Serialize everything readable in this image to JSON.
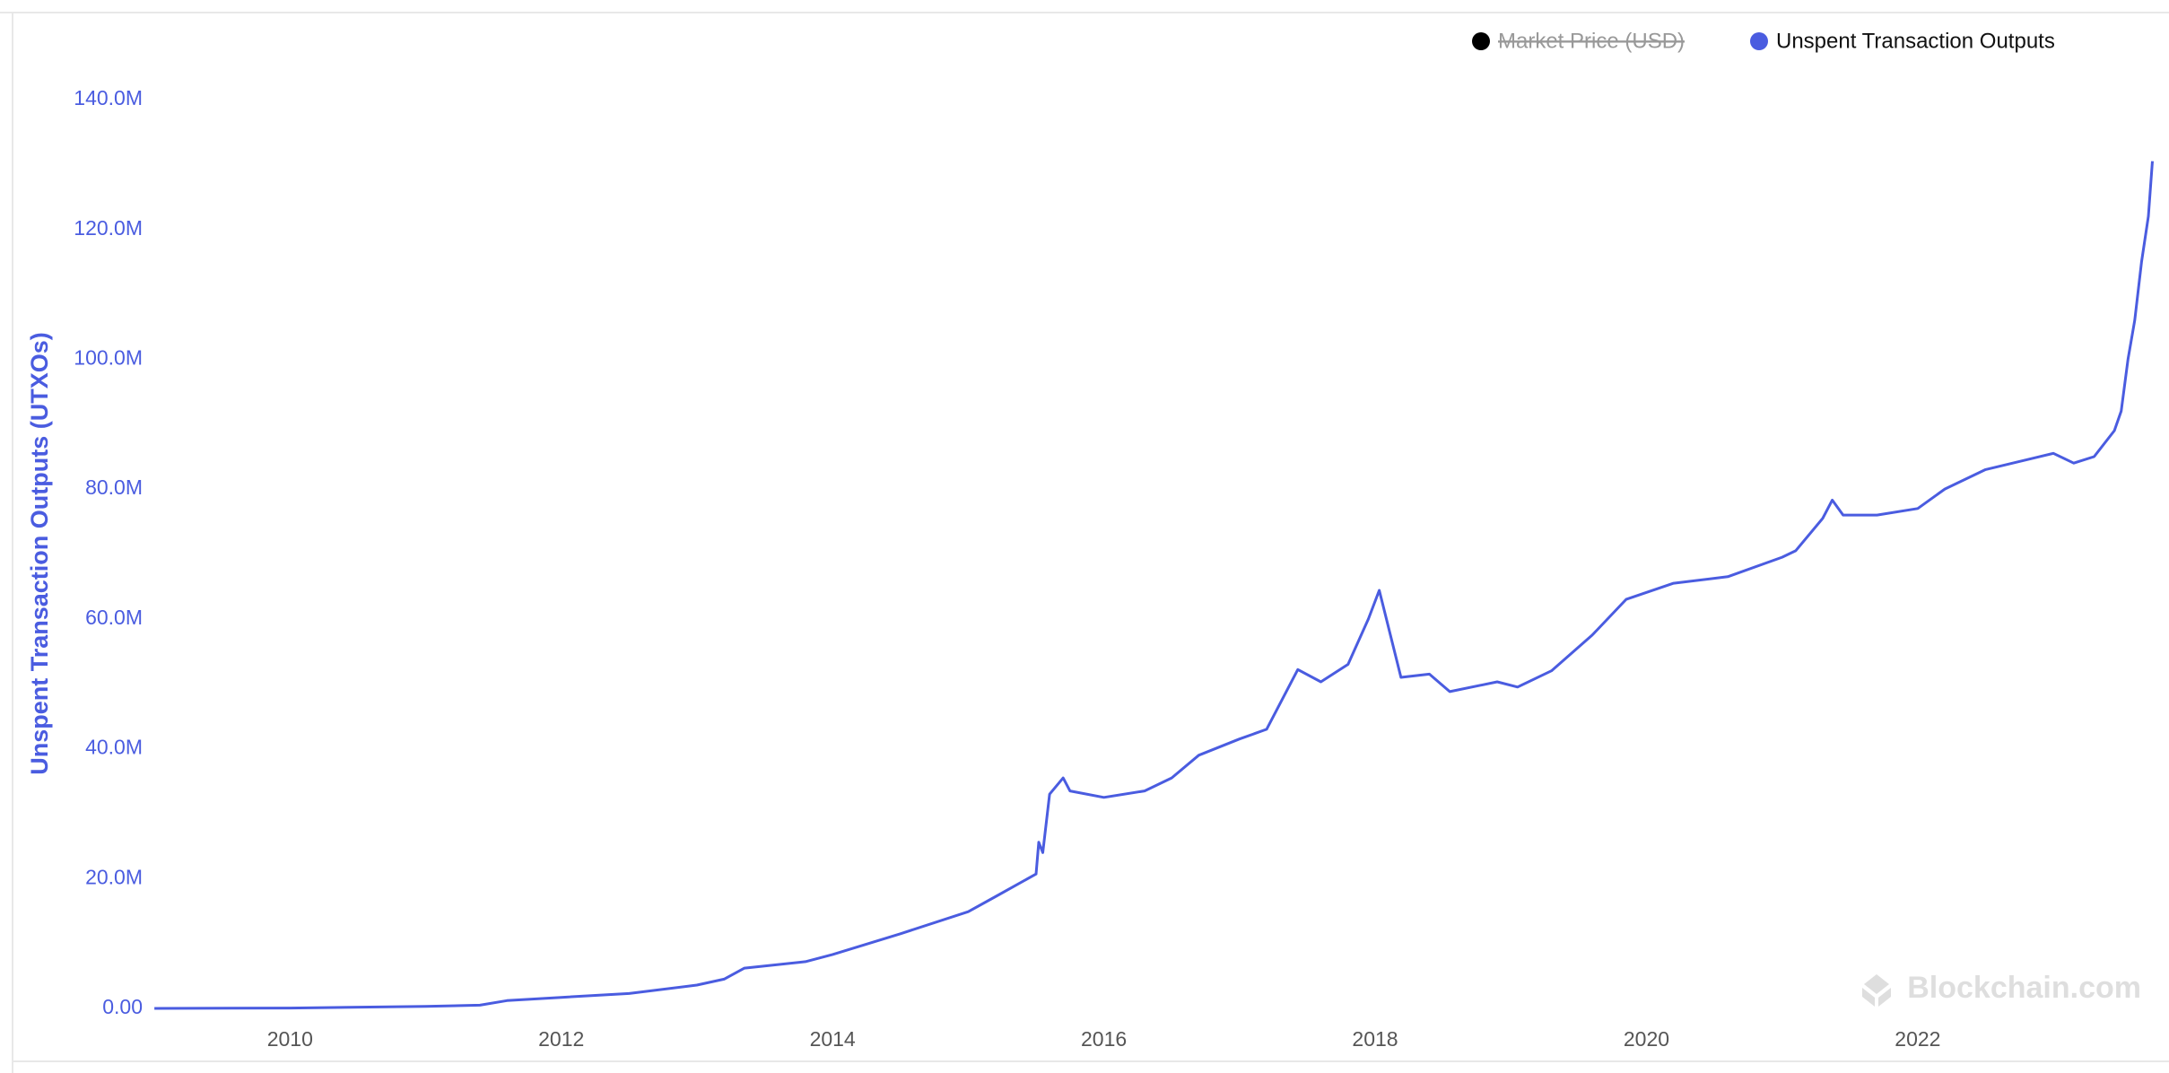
{
  "chart_data": {
    "type": "line",
    "y_label": "Unspent Transaction Outputs (UTXOs)",
    "watermark": "Blockchain.com",
    "x": [
      2009.0,
      2010.0,
      2011.0,
      2011.4,
      2011.6,
      2012.0,
      2012.5,
      2013.0,
      2013.2,
      2013.35,
      2013.8,
      2014.0,
      2014.5,
      2015.0,
      2015.2,
      2015.5,
      2015.52,
      2015.55,
      2015.6,
      2015.7,
      2015.75,
      2016.0,
      2016.3,
      2016.5,
      2016.7,
      2017.0,
      2017.2,
      2017.43,
      2017.6,
      2017.8,
      2017.95,
      2018.03,
      2018.19,
      2018.4,
      2018.55,
      2018.9,
      2019.05,
      2019.3,
      2019.6,
      2019.85,
      2020.2,
      2020.6,
      2021.0,
      2021.1,
      2021.3,
      2021.37,
      2021.45,
      2021.7,
      2022.0,
      2022.2,
      2022.5,
      2022.8,
      2023.0,
      2023.15,
      2023.3,
      2023.45,
      2023.5,
      2023.55,
      2023.6,
      2023.65,
      2023.7,
      2023.73
    ],
    "series": [
      {
        "name": "Unspent Transaction Outputs",
        "color": "#4a5ce0",
        "values": [
          0,
          50000,
          300000,
          500000,
          1200000,
          1700000,
          2300000,
          3600000,
          4500000,
          6200000,
          7200000,
          8300000,
          11500000,
          14900000,
          17200000,
          20700000,
          25600000,
          24000000,
          33000000,
          35500000,
          33500000,
          32500000,
          33500000,
          35500000,
          39000000,
          41500000,
          43000000,
          52200000,
          50300000,
          53000000,
          60000000,
          64400000,
          51000000,
          51500000,
          48800000,
          50300000,
          49500000,
          52000000,
          57500000,
          63000000,
          65500000,
          66500000,
          69500000,
          70500000,
          75500000,
          78300000,
          76000000,
          76000000,
          77000000,
          80000000,
          83000000,
          84500000,
          85500000,
          84000000,
          85000000,
          89000000,
          92000000,
          100000000,
          106000000,
          115000000,
          122000000,
          130500000
        ]
      }
    ],
    "hidden_series": [
      {
        "name": "Market Price (USD)",
        "color": "#000000"
      }
    ],
    "xlim": [
      2008.94,
      2023.74
    ],
    "xticks": [
      2010,
      2012,
      2014,
      2016,
      2018,
      2020,
      2022
    ],
    "ylim": [
      0,
      140000000
    ],
    "yticks": [
      {
        "value": 0,
        "label": "0.00"
      },
      {
        "value": 20000000,
        "label": "20.0M"
      },
      {
        "value": 40000000,
        "label": "40.0M"
      },
      {
        "value": 60000000,
        "label": "60.0M"
      },
      {
        "value": 80000000,
        "label": "80.0M"
      },
      {
        "value": 100000000,
        "label": "100.0M"
      },
      {
        "value": 120000000,
        "label": "120.0M"
      },
      {
        "value": 140000000,
        "label": "140.0M"
      }
    ],
    "grid": false
  }
}
